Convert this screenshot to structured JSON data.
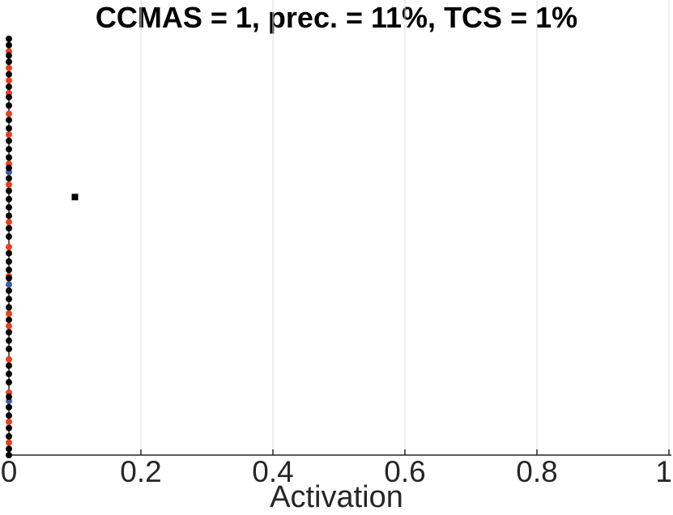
{
  "chart_data": {
    "type": "scatter",
    "title": "CCMAS = 1, prec. = 11%, TCS = 1%",
    "xlabel": "Activation",
    "ylabel": "",
    "xlim": [
      0,
      1
    ],
    "ylim": [
      0,
      1
    ],
    "x_ticks": [
      {
        "value": 0,
        "label": "0"
      },
      {
        "value": 0.2,
        "label": "0.2"
      },
      {
        "value": 0.4,
        "label": "0.4"
      },
      {
        "value": 0.6,
        "label": "0.6"
      },
      {
        "value": 0.8,
        "label": "0.8"
      },
      {
        "value": 1,
        "label": "1"
      }
    ],
    "grid": "vertical",
    "series": [
      {
        "color": "#000000",
        "marker": "square",
        "points": [
          {
            "x": 0.1,
            "y": 0.62
          }
        ]
      },
      {
        "color": "#e8401c",
        "marker": "circle",
        "points": [
          {
            "x": 0,
            "y": 0.97
          },
          {
            "x": 0,
            "y": 0.93
          },
          {
            "x": 0,
            "y": 0.9
          },
          {
            "x": 0,
            "y": 0.87
          },
          {
            "x": 0,
            "y": 0.82
          },
          {
            "x": 0,
            "y": 0.77
          },
          {
            "x": 0,
            "y": 0.7
          },
          {
            "x": 0,
            "y": 0.65
          },
          {
            "x": 0,
            "y": 0.56
          },
          {
            "x": 0,
            "y": 0.5
          },
          {
            "x": 0,
            "y": 0.43
          },
          {
            "x": 0,
            "y": 0.34
          },
          {
            "x": 0,
            "y": 0.31
          },
          {
            "x": 0,
            "y": 0.23
          },
          {
            "x": 0,
            "y": 0.15
          },
          {
            "x": 0,
            "y": 0.08
          },
          {
            "x": 0,
            "y": 0.03
          }
        ]
      },
      {
        "color": "#3b5fa0",
        "marker": "circle",
        "points": [
          {
            "x": 0,
            "y": 0.68
          },
          {
            "x": 0,
            "y": 0.41
          },
          {
            "x": 0,
            "y": 0.13
          }
        ]
      },
      {
        "color": "#000000",
        "marker": "circle",
        "points": [
          {
            "x": 0,
            "y": 1.0
          },
          {
            "x": 0,
            "y": 0.985
          },
          {
            "x": 0,
            "y": 0.96
          },
          {
            "x": 0,
            "y": 0.945
          },
          {
            "x": 0,
            "y": 0.915
          },
          {
            "x": 0,
            "y": 0.885
          },
          {
            "x": 0,
            "y": 0.86
          },
          {
            "x": 0,
            "y": 0.84
          },
          {
            "x": 0,
            "y": 0.805
          },
          {
            "x": 0,
            "y": 0.785
          },
          {
            "x": 0,
            "y": 0.755
          },
          {
            "x": 0,
            "y": 0.735
          },
          {
            "x": 0,
            "y": 0.715
          },
          {
            "x": 0,
            "y": 0.69
          },
          {
            "x": 0,
            "y": 0.665
          },
          {
            "x": 0,
            "y": 0.635
          },
          {
            "x": 0,
            "y": 0.615
          },
          {
            "x": 0,
            "y": 0.595
          },
          {
            "x": 0,
            "y": 0.575
          },
          {
            "x": 0,
            "y": 0.545
          },
          {
            "x": 0,
            "y": 0.525
          },
          {
            "x": 0,
            "y": 0.485
          },
          {
            "x": 0,
            "y": 0.465
          },
          {
            "x": 0,
            "y": 0.445
          },
          {
            "x": 0,
            "y": 0.425
          },
          {
            "x": 0,
            "y": 0.395
          },
          {
            "x": 0,
            "y": 0.375
          },
          {
            "x": 0,
            "y": 0.355
          },
          {
            "x": 0,
            "y": 0.325
          },
          {
            "x": 0,
            "y": 0.295
          },
          {
            "x": 0,
            "y": 0.275
          },
          {
            "x": 0,
            "y": 0.255
          },
          {
            "x": 0,
            "y": 0.215
          },
          {
            "x": 0,
            "y": 0.195
          },
          {
            "x": 0,
            "y": 0.175
          },
          {
            "x": 0,
            "y": 0.14
          },
          {
            "x": 0,
            "y": 0.115
          },
          {
            "x": 0,
            "y": 0.095
          },
          {
            "x": 0,
            "y": 0.065
          },
          {
            "x": 0,
            "y": 0.045
          },
          {
            "x": 0,
            "y": 0.015
          },
          {
            "x": 0,
            "y": 0.0
          }
        ]
      }
    ]
  }
}
